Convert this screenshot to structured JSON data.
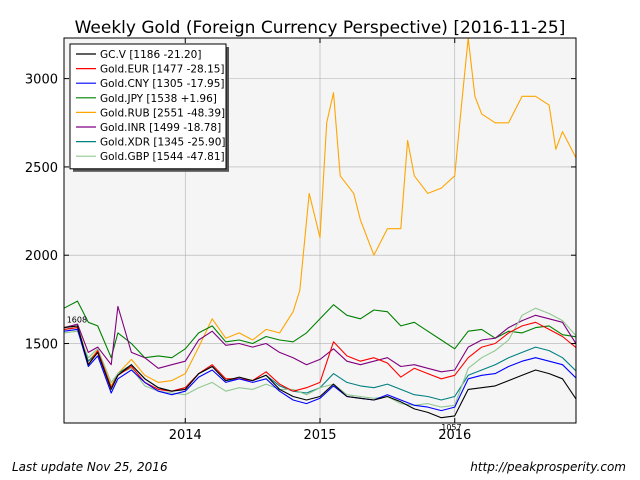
{
  "chart_data": {
    "type": "line",
    "title": "Weekly Gold (Foreign Currency Perspective)  [2016-11-25]",
    "xlabel": "",
    "ylabel": "",
    "x_range": [
      2013.1,
      2016.9
    ],
    "ylim": [
      1050,
      3230
    ],
    "x_ticks": [
      {
        "value": 2014,
        "label": "2014"
      },
      {
        "value": 2015,
        "label": "2015"
      },
      {
        "value": 2016,
        "label": "2016"
      }
    ],
    "y_ticks": [
      {
        "value": 1500,
        "label": "1500"
      },
      {
        "value": 2000,
        "label": "2000"
      },
      {
        "value": 2500,
        "label": "2500"
      },
      {
        "value": 3000,
        "label": "3000"
      }
    ],
    "grid": true,
    "legend_position": "top-left",
    "annotations": [
      {
        "text": "1608",
        "x": 2013.12,
        "y": 1608
      },
      {
        "text": "1057",
        "x": 2015.9,
        "y": 1057
      }
    ],
    "series": [
      {
        "name": "GC.V [1186 -21.20]",
        "color": "#000000",
        "x": [
          2013.1,
          2013.2,
          2013.28,
          2013.35,
          2013.45,
          2013.5,
          2013.6,
          2013.7,
          2013.8,
          2013.9,
          2014.0,
          2014.1,
          2014.2,
          2014.3,
          2014.4,
          2014.5,
          2014.6,
          2014.7,
          2014.8,
          2014.9,
          2015.0,
          2015.1,
          2015.2,
          2015.3,
          2015.4,
          2015.5,
          2015.6,
          2015.7,
          2015.8,
          2015.9,
          2016.0,
          2016.1,
          2016.2,
          2016.3,
          2016.4,
          2016.5,
          2016.6,
          2016.7,
          2016.8,
          2016.9
        ],
        "y": [
          1590,
          1600,
          1380,
          1450,
          1240,
          1320,
          1380,
          1300,
          1250,
          1230,
          1240,
          1330,
          1370,
          1290,
          1310,
          1290,
          1320,
          1240,
          1200,
          1180,
          1200,
          1270,
          1200,
          1190,
          1180,
          1200,
          1170,
          1130,
          1110,
          1080,
          1090,
          1240,
          1250,
          1260,
          1290,
          1320,
          1350,
          1330,
          1300,
          1186
        ]
      },
      {
        "name": "Gold.EUR [1477 -28.15]",
        "color": "#ff0000",
        "x": [
          2013.1,
          2013.2,
          2013.28,
          2013.35,
          2013.45,
          2013.5,
          2013.6,
          2013.7,
          2013.8,
          2013.9,
          2014.0,
          2014.1,
          2014.2,
          2014.3,
          2014.4,
          2014.5,
          2014.6,
          2014.7,
          2014.8,
          2014.9,
          2015.0,
          2015.1,
          2015.2,
          2015.3,
          2015.4,
          2015.5,
          2015.6,
          2015.7,
          2015.8,
          2015.9,
          2016.0,
          2016.1,
          2016.2,
          2016.3,
          2016.4,
          2016.5,
          2016.6,
          2016.7,
          2016.8,
          2016.9
        ],
        "y": [
          1580,
          1590,
          1380,
          1460,
          1250,
          1320,
          1370,
          1280,
          1240,
          1230,
          1250,
          1330,
          1380,
          1300,
          1300,
          1290,
          1340,
          1270,
          1230,
          1250,
          1280,
          1510,
          1430,
          1400,
          1420,
          1390,
          1310,
          1360,
          1330,
          1300,
          1320,
          1420,
          1480,
          1500,
          1560,
          1600,
          1620,
          1580,
          1540,
          1477
        ]
      },
      {
        "name": "Gold.CNY [1305 -17.95]",
        "color": "#0000ff",
        "x": [
          2013.1,
          2013.2,
          2013.28,
          2013.35,
          2013.45,
          2013.5,
          2013.6,
          2013.7,
          2013.8,
          2013.9,
          2014.0,
          2014.1,
          2014.2,
          2014.3,
          2014.4,
          2014.5,
          2014.6,
          2014.7,
          2014.8,
          2014.9,
          2015.0,
          2015.1,
          2015.2,
          2015.3,
          2015.4,
          2015.5,
          2015.6,
          2015.7,
          2015.8,
          2015.9,
          2016.0,
          2016.1,
          2016.2,
          2016.3,
          2016.4,
          2016.5,
          2016.6,
          2016.7,
          2016.8,
          2016.9
        ],
        "y": [
          1570,
          1580,
          1370,
          1430,
          1220,
          1300,
          1350,
          1280,
          1230,
          1210,
          1230,
          1310,
          1350,
          1280,
          1300,
          1280,
          1300,
          1230,
          1180,
          1160,
          1190,
          1260,
          1200,
          1190,
          1180,
          1210,
          1180,
          1150,
          1140,
          1120,
          1140,
          1300,
          1320,
          1330,
          1370,
          1400,
          1420,
          1400,
          1380,
          1305
        ]
      },
      {
        "name": "Gold.JPY [1538 +1.96]",
        "color": "#008000",
        "x": [
          2013.1,
          2013.2,
          2013.28,
          2013.35,
          2013.45,
          2013.5,
          2013.6,
          2013.7,
          2013.8,
          2013.9,
          2014.0,
          2014.1,
          2014.2,
          2014.3,
          2014.4,
          2014.5,
          2014.6,
          2014.7,
          2014.8,
          2014.9,
          2015.0,
          2015.1,
          2015.2,
          2015.3,
          2015.4,
          2015.5,
          2015.6,
          2015.7,
          2015.8,
          2015.9,
          2016.0,
          2016.1,
          2016.2,
          2016.3,
          2016.4,
          2016.5,
          2016.6,
          2016.7,
          2016.8,
          2016.9
        ],
        "y": [
          1700,
          1740,
          1620,
          1600,
          1420,
          1560,
          1500,
          1420,
          1430,
          1420,
          1470,
          1560,
          1600,
          1510,
          1520,
          1500,
          1540,
          1520,
          1510,
          1560,
          1640,
          1720,
          1660,
          1640,
          1690,
          1680,
          1600,
          1620,
          1570,
          1520,
          1470,
          1570,
          1580,
          1530,
          1570,
          1560,
          1590,
          1600,
          1550,
          1538
        ]
      },
      {
        "name": "Gold.RUB [2551 -48.39]",
        "color": "#ffa500",
        "x": [
          2013.1,
          2013.2,
          2013.28,
          2013.35,
          2013.45,
          2013.5,
          2013.6,
          2013.7,
          2013.8,
          2013.9,
          2014.0,
          2014.1,
          2014.2,
          2014.3,
          2014.4,
          2014.5,
          2014.6,
          2014.7,
          2014.8,
          2014.85,
          2014.92,
          2015.0,
          2015.05,
          2015.1,
          2015.15,
          2015.25,
          2015.3,
          2015.4,
          2015.5,
          2015.6,
          2015.65,
          2015.7,
          2015.8,
          2015.9,
          2016.0,
          2016.05,
          2016.1,
          2016.15,
          2016.2,
          2016.3,
          2016.4,
          2016.5,
          2016.6,
          2016.7,
          2016.75,
          2016.8,
          2016.9
        ],
        "y": [
          1590,
          1600,
          1400,
          1460,
          1260,
          1330,
          1410,
          1320,
          1280,
          1290,
          1330,
          1480,
          1640,
          1530,
          1560,
          1520,
          1580,
          1560,
          1680,
          1800,
          2350,
          2100,
          2750,
          2920,
          2450,
          2350,
          2200,
          2000,
          2150,
          2150,
          2650,
          2450,
          2350,
          2380,
          2450,
          2850,
          3230,
          2900,
          2800,
          2750,
          2750,
          2900,
          2900,
          2850,
          2600,
          2700,
          2551
        ]
      },
      {
        "name": "Gold.INR [1499 -18.78]",
        "color": "#800080",
        "x": [
          2013.1,
          2013.2,
          2013.28,
          2013.35,
          2013.45,
          2013.5,
          2013.6,
          2013.7,
          2013.8,
          2013.9,
          2014.0,
          2014.1,
          2014.2,
          2014.3,
          2014.4,
          2014.5,
          2014.6,
          2014.7,
          2014.8,
          2014.9,
          2015.0,
          2015.1,
          2015.2,
          2015.3,
          2015.4,
          2015.5,
          2015.6,
          2015.7,
          2015.8,
          2015.9,
          2016.0,
          2016.1,
          2016.2,
          2016.3,
          2016.4,
          2016.5,
          2016.6,
          2016.7,
          2016.8,
          2016.9
        ],
        "y": [
          1590,
          1610,
          1450,
          1480,
          1380,
          1710,
          1450,
          1420,
          1360,
          1380,
          1400,
          1520,
          1570,
          1490,
          1500,
          1480,
          1500,
          1450,
          1420,
          1380,
          1410,
          1470,
          1400,
          1380,
          1400,
          1420,
          1370,
          1380,
          1360,
          1340,
          1350,
          1480,
          1520,
          1530,
          1590,
          1630,
          1660,
          1640,
          1620,
          1499
        ]
      },
      {
        "name": "Gold.XDR [1345 -25.90]",
        "color": "#008080",
        "x": [
          2013.1,
          2013.2,
          2013.28,
          2013.35,
          2013.45,
          2013.5,
          2013.6,
          2013.7,
          2013.8,
          2013.9,
          2014.0,
          2014.1,
          2014.2,
          2014.3,
          2014.4,
          2014.5,
          2014.6,
          2014.7,
          2014.8,
          2014.9,
          2015.0,
          2015.1,
          2015.2,
          2015.3,
          2015.4,
          2015.5,
          2015.6,
          2015.7,
          2015.8,
          2015.9,
          2016.0,
          2016.1,
          2016.2,
          2016.3,
          2016.4,
          2016.5,
          2016.6,
          2016.7,
          2016.8,
          2016.9
        ],
        "y": [
          1580,
          1590,
          1400,
          1450,
          1250,
          1330,
          1380,
          1300,
          1250,
          1230,
          1250,
          1330,
          1370,
          1290,
          1300,
          1290,
          1320,
          1260,
          1230,
          1220,
          1250,
          1330,
          1280,
          1260,
          1250,
          1270,
          1240,
          1210,
          1200,
          1180,
          1200,
          1320,
          1350,
          1380,
          1420,
          1450,
          1480,
          1460,
          1420,
          1345
        ]
      },
      {
        "name": "Gold.GBP [1544 -47.81]",
        "color": "#90c890",
        "x": [
          2013.1,
          2013.2,
          2013.28,
          2013.35,
          2013.45,
          2013.5,
          2013.6,
          2013.7,
          2013.8,
          2013.9,
          2014.0,
          2014.1,
          2014.2,
          2014.3,
          2014.4,
          2014.5,
          2014.6,
          2014.7,
          2014.8,
          2014.9,
          2015.0,
          2015.1,
          2015.2,
          2015.3,
          2015.4,
          2015.5,
          2015.6,
          2015.7,
          2015.8,
          2015.9,
          2016.0,
          2016.1,
          2016.2,
          2016.3,
          2016.4,
          2016.5,
          2016.6,
          2016.7,
          2016.8,
          2016.9
        ],
        "y": [
          1560,
          1570,
          1420,
          1470,
          1280,
          1330,
          1360,
          1260,
          1230,
          1220,
          1210,
          1250,
          1280,
          1230,
          1250,
          1240,
          1270,
          1240,
          1240,
          1210,
          1250,
          1270,
          1210,
          1200,
          1190,
          1200,
          1160,
          1150,
          1160,
          1140,
          1150,
          1360,
          1420,
          1460,
          1520,
          1660,
          1700,
          1670,
          1630,
          1544
        ]
      }
    ]
  },
  "footer": {
    "last_update": "Last update Nov 25, 2016",
    "source_url": "http://peakprosperity.com"
  }
}
